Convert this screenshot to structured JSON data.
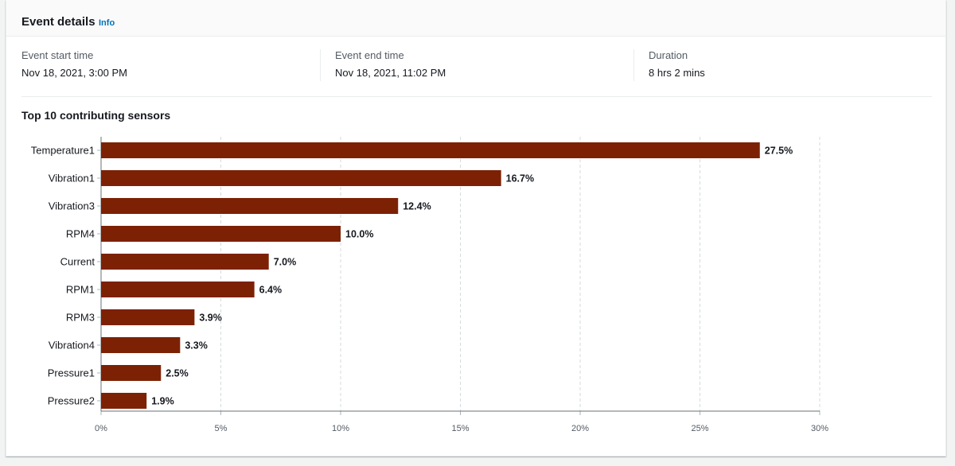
{
  "panel": {
    "title": "Event details",
    "info_label": "Info"
  },
  "details": [
    {
      "label": "Event start time",
      "value": "Nov 18, 2021, 3:00 PM"
    },
    {
      "label": "Event end time",
      "value": "Nov 18, 2021, 11:02 PM"
    },
    {
      "label": "Duration",
      "value": "8 hrs 2 mins"
    }
  ],
  "colors": {
    "bar": "#7d2105",
    "link": "#0073bb"
  },
  "chart_data": {
    "type": "bar",
    "orientation": "horizontal",
    "title": "Top 10 contributing sensors",
    "categories": [
      "Temperature1",
      "Vibration1",
      "Vibration3",
      "RPM4",
      "Current",
      "RPM1",
      "RPM3",
      "Vibration4",
      "Pressure1",
      "Pressure2"
    ],
    "values": [
      27.5,
      16.7,
      12.4,
      10.0,
      7.0,
      6.4,
      3.9,
      3.3,
      2.5,
      1.9
    ],
    "value_labels": [
      "27.5%",
      "16.7%",
      "12.4%",
      "10.0%",
      "7.0%",
      "6.4%",
      "3.9%",
      "3.3%",
      "2.5%",
      "1.9%"
    ],
    "xlim": [
      0,
      30
    ],
    "xticks": [
      0,
      5,
      10,
      15,
      20,
      25,
      30
    ],
    "xtick_labels": [
      "0%",
      "5%",
      "10%",
      "15%",
      "20%",
      "25%",
      "30%"
    ],
    "xlabel": "",
    "ylabel": "",
    "grid": "vertical dashed"
  }
}
